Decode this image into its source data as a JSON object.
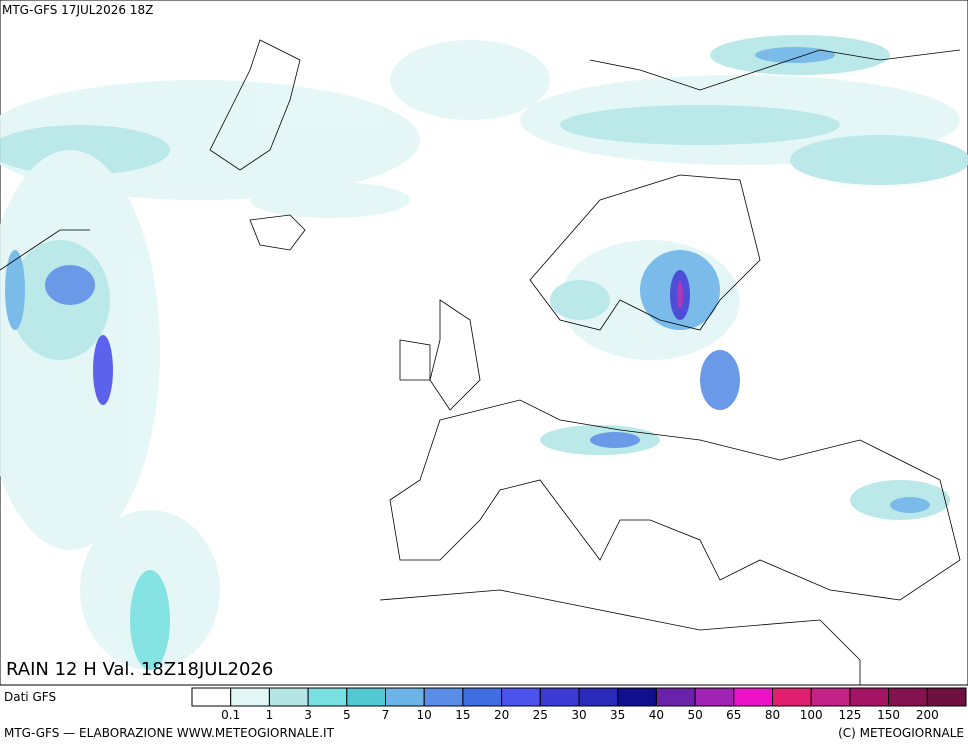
{
  "header": {
    "run": "MTG-GFS 17JUL2026 18Z"
  },
  "map": {
    "title": "RAIN 12 H Val. 18Z18JUL2026"
  },
  "legend": {
    "source": "Dati GFS",
    "colors": [
      "#ffffff",
      "#e2f6f6",
      "#b4e6e6",
      "#78e0e0",
      "#52c8d2",
      "#6cb4e8",
      "#5a8ee6",
      "#3e6ee0",
      "#4c52ec",
      "#3a3ad4",
      "#2a2ab8",
      "#10108e",
      "#6a22a8",
      "#a222b4",
      "#ec12c8",
      "#e0206e",
      "#c42284",
      "#a41464",
      "#84124e",
      "#6e1040"
    ],
    "labels": [
      0.1,
      1,
      3,
      5,
      7,
      10,
      15,
      20,
      25,
      30,
      35,
      40,
      50,
      65,
      80,
      100,
      125,
      150,
      200
    ]
  },
  "footer": {
    "left": "MTG-GFS — ELABORAZIONE WWW.METEOGIORNALE.IT",
    "right": "(C) METEOGIORNALE"
  }
}
